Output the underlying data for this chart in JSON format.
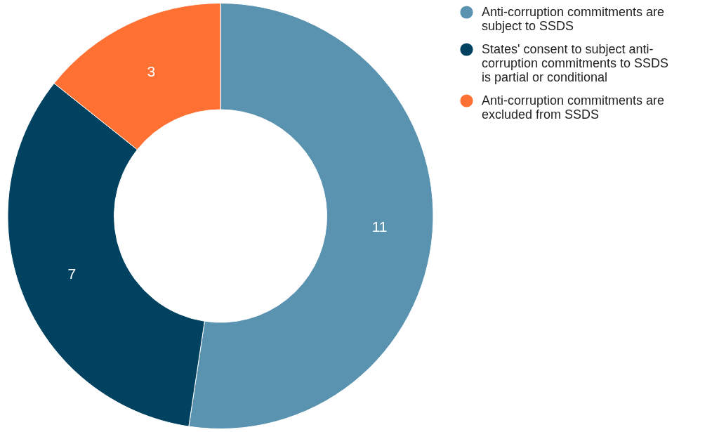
{
  "chart_data": {
    "type": "donut",
    "categories": [
      "Anti-corruption commitments are subject to SSDS",
      "States' consent to subject anti-corruption commitments to SSDS is partial or conditional",
      "Anti-corruption commitments are excluded from SSDS"
    ],
    "values": [
      11,
      7,
      3
    ],
    "colors": [
      "#5a93b0",
      "#00425f",
      "#ff7033"
    ],
    "data_labels": true,
    "legend": "top right"
  }
}
